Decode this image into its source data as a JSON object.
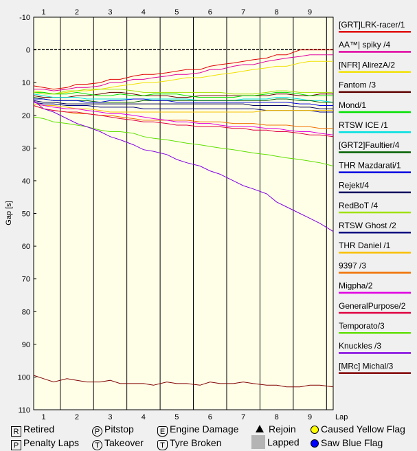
{
  "chart_data": {
    "type": "line",
    "ylabel": "Gap [s]",
    "xlabel": "Lap",
    "xlim": [
      0.7,
      9.7
    ],
    "ylim": [
      -10,
      110
    ],
    "y_inverted": true,
    "yticks": [
      -10,
      0,
      10,
      20,
      30,
      40,
      50,
      60,
      70,
      80,
      90,
      100,
      110
    ],
    "xticks": [
      1,
      2,
      3,
      4,
      5,
      6,
      7,
      8,
      9
    ],
    "grid": "vertical lap lines",
    "x": [
      0.7,
      1,
      1.3,
      1.7,
      2,
      2.3,
      2.7,
      3,
      3.3,
      3.7,
      4,
      4.3,
      4.7,
      5,
      5.3,
      5.7,
      6,
      6.3,
      6.7,
      7,
      7.3,
      7.7,
      8,
      8.3,
      8.7,
      9,
      9.3,
      9.7
    ],
    "series": [
      {
        "name": "[GRT]LRK-racer/1",
        "color": "#e00000",
        "values": [
          11,
          11.5,
          12,
          11.5,
          10.5,
          10.5,
          10,
          9,
          9,
          8,
          7.5,
          7.5,
          7,
          6.5,
          6,
          6,
          5,
          4.5,
          4,
          3.5,
          3,
          2.5,
          1.5,
          1.5,
          0,
          0,
          0,
          0
        ]
      },
      {
        "name": "AA™| spiky /4",
        "color": "#e000a0",
        "values": [
          12,
          12,
          12.5,
          12,
          11.5,
          11.5,
          11,
          10,
          10,
          9,
          9,
          8.5,
          8,
          7.5,
          7.5,
          7,
          6,
          6,
          5,
          4.5,
          4.5,
          3.5,
          3,
          2.5,
          2,
          1.5,
          1.5,
          1.5
        ]
      },
      {
        "name": "[NFR] AlirezA/2",
        "color": "#f0e000",
        "values": [
          12.5,
          13,
          13.5,
          13,
          12.5,
          12.5,
          12,
          11.5,
          11,
          10.5,
          10,
          10,
          9.5,
          9,
          8.5,
          8.5,
          8,
          7.5,
          7,
          6.5,
          6,
          5.5,
          5,
          5,
          4,
          3.5,
          3.5,
          3.5
        ]
      },
      {
        "name": "Fantom /3",
        "color": "#600000",
        "values": [
          14,
          14.5,
          14.5,
          14.5,
          14,
          14,
          13.5,
          13,
          13,
          13.5,
          14,
          14,
          14,
          14.5,
          14.5,
          14,
          14,
          14,
          14,
          14,
          14,
          14,
          13.5,
          13.5,
          14,
          14,
          13.5,
          13.5
        ]
      },
      {
        "name": "Mond/1",
        "color": "#00e000",
        "values": [
          13,
          13,
          13.5,
          13.5,
          13,
          13.5,
          14,
          14,
          13.5,
          14,
          14,
          13.5,
          13.5,
          13.5,
          14,
          14.5,
          14.5,
          14.5,
          14.5,
          14,
          14,
          13.5,
          13,
          13,
          13.5,
          14,
          14,
          14
        ]
      },
      {
        "name": "RTSW ICE /1",
        "color": "#00e0e0",
        "values": [
          13.5,
          14,
          14.5,
          14.5,
          14.5,
          15,
          15,
          15,
          15,
          15,
          15,
          15,
          15,
          15,
          15,
          15.5,
          15.5,
          15.5,
          15.5,
          15,
          15,
          15,
          14.5,
          14.5,
          15,
          15.5,
          15.5,
          16
        ]
      },
      {
        "name": "[GRT2]Faultier/4",
        "color": "#006000",
        "values": [
          14.5,
          15,
          15.5,
          15.5,
          15.5,
          15.5,
          16,
          16,
          16,
          16,
          15.5,
          15.5,
          15.5,
          15.5,
          15.5,
          15.5,
          15.5,
          15.5,
          15.5,
          15.5,
          15.5,
          15.5,
          15,
          15,
          15.5,
          15.5,
          16,
          16
        ]
      },
      {
        "name": "THR Mazdarati/1",
        "color": "#0000e0",
        "values": [
          15,
          15,
          15.5,
          15.5,
          15.5,
          16,
          16,
          15.5,
          15.5,
          15,
          15,
          15.5,
          15.5,
          16,
          16,
          16,
          16,
          16,
          16,
          16,
          16,
          16,
          16,
          16,
          16.5,
          16.5,
          17,
          17
        ]
      },
      {
        "name": "Rejekt/4",
        "color": "#000060",
        "values": [
          15.5,
          16,
          16,
          16.5,
          16.5,
          16.5,
          16.5,
          16.5,
          16.5,
          16.5,
          16.5,
          16.5,
          16.5,
          16.5,
          16.5,
          16.5,
          16.5,
          16.5,
          16.5,
          16.5,
          17,
          17,
          17,
          17,
          17.5,
          17.5,
          18,
          18
        ]
      },
      {
        "name": "RedBoT /4",
        "color": "#a0e000",
        "values": [
          13,
          13.5,
          13.5,
          12.5,
          12.5,
          12,
          12,
          12,
          12,
          12.5,
          13,
          13,
          13,
          13,
          13,
          13,
          13,
          13,
          13.5,
          13.5,
          13.5,
          13,
          12.5,
          12.5,
          13,
          13,
          13,
          13
        ]
      },
      {
        "name": "RTSW Ghost /2",
        "color": "#000080",
        "values": [
          16,
          16.5,
          16.5,
          17,
          17,
          17,
          17.5,
          17.5,
          17.5,
          17.5,
          18,
          18,
          18,
          18,
          18,
          18,
          18,
          18,
          18,
          18,
          18,
          18.5,
          18.5,
          18.5,
          18.5,
          18.5,
          19,
          19
        ]
      },
      {
        "name": "THR Daniel /1",
        "color": "#f8c000",
        "values": [
          16.5,
          17,
          17,
          17.5,
          18,
          18,
          18.5,
          19,
          19,
          19,
          19,
          19,
          19,
          19,
          19,
          19,
          19,
          19,
          19,
          19,
          19,
          18.5,
          18.5,
          18.5,
          18.5,
          18.5,
          18.5,
          18.5
        ]
      },
      {
        "name": "9397 /3",
        "color": "#f07000",
        "values": [
          17,
          18,
          18.5,
          19,
          19.5,
          19.5,
          20,
          20,
          20.5,
          21,
          21.5,
          21.5,
          21.5,
          21.5,
          21.5,
          22,
          22,
          22,
          22.5,
          22.5,
          22.5,
          23,
          23,
          23,
          23.5,
          23.5,
          24,
          24
        ]
      },
      {
        "name": "Migpha/2",
        "color": "#e000e0",
        "values": [
          16,
          17,
          17.5,
          18,
          18,
          18.5,
          19,
          19.5,
          19.5,
          20,
          20.5,
          21,
          21.5,
          22,
          22,
          22.5,
          22.5,
          23,
          23.5,
          23.5,
          23.5,
          24,
          24,
          24.5,
          25,
          25,
          25.5,
          26
        ]
      },
      {
        "name": "GeneralPurpose/2",
        "color": "#e00040",
        "values": [
          17,
          18,
          18.5,
          19,
          19,
          19.5,
          20,
          20.5,
          21,
          21.5,
          22,
          22,
          22.5,
          23,
          23,
          23.5,
          23.5,
          23.5,
          24,
          24,
          24.5,
          24.5,
          25,
          25,
          25.5,
          26,
          26,
          26.5
        ]
      },
      {
        "name": "Temporato/3",
        "color": "#60e000",
        "values": [
          20.5,
          21,
          22,
          22.5,
          23,
          23.5,
          24.5,
          25,
          25,
          25.5,
          26.5,
          27,
          27.5,
          28,
          28.5,
          29,
          29.5,
          30,
          30.5,
          31,
          31.5,
          32,
          32.5,
          33,
          33.5,
          34,
          34.5,
          35.5
        ]
      },
      {
        "name": "Knuckles /3",
        "color": "#8000e0",
        "values": [
          15.5,
          18,
          19,
          21,
          22.5,
          23.5,
          25,
          26.5,
          27.5,
          29,
          30.5,
          31,
          32,
          33.5,
          34.5,
          35.5,
          37,
          38,
          40,
          41.5,
          42.5,
          44,
          46.5,
          48,
          50,
          51.5,
          53,
          55.5
        ]
      },
      {
        "name": "[MRc] Michal/3",
        "color": "#800000",
        "values": [
          99.5,
          100.5,
          101.5,
          100.5,
          101,
          101.5,
          101.5,
          101,
          102,
          102,
          102,
          102.5,
          101.5,
          102,
          102,
          102.5,
          101.5,
          102,
          102,
          101.5,
          102,
          102.5,
          102.5,
          103,
          103,
          102.5,
          102.5,
          103
        ]
      }
    ]
  },
  "key": {
    "retired": {
      "symbol": "R",
      "label": "Retired"
    },
    "penalty_laps": {
      "symbol": "P",
      "label": "Penalty Laps"
    },
    "pitstop": {
      "symbol": "P",
      "label": "Pitstop"
    },
    "takeover": {
      "symbol": "T",
      "label": "Takeover"
    },
    "engine_damage": {
      "symbol": "E",
      "label": "Engine Damage"
    },
    "tyre_broken": {
      "symbol": "T",
      "label": "Tyre Broken"
    },
    "rejoin": {
      "label": "Rejoin"
    },
    "lapped": {
      "label": "Lapped"
    },
    "caused_yellow": {
      "label": "Caused Yellow Flag"
    },
    "saw_blue": {
      "label": "Saw Blue Flag"
    }
  }
}
